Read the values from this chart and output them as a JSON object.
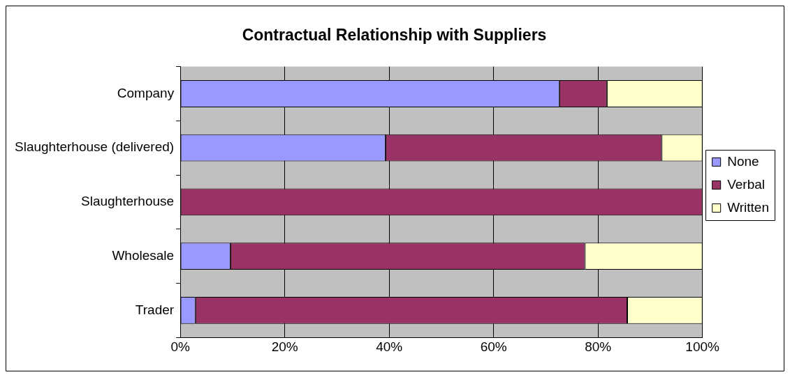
{
  "chart_data": {
    "type": "bar",
    "orientation": "horizontal",
    "stacked": true,
    "title": "Contractual Relationship with Suppliers",
    "categories": [
      "Company",
      "Slaughterhouse (delivered)",
      "Slaughterhouse",
      "Wholesale",
      "Trader"
    ],
    "series": [
      {
        "name": "None",
        "color": "#9999ff",
        "values": [
          72.6,
          39.3,
          0,
          9.6,
          2.9
        ]
      },
      {
        "name": "Verbal",
        "color": "#993366",
        "values": [
          9.1,
          52.9,
          100,
          67.9,
          82.7
        ]
      },
      {
        "name": "Written",
        "color": "#ffffcc",
        "values": [
          18.3,
          7.8,
          0,
          22.5,
          14.4
        ]
      }
    ],
    "xlim": [
      0,
      100
    ],
    "xticks": [
      {
        "value": 0,
        "label": "0%"
      },
      {
        "value": 20,
        "label": "20%"
      },
      {
        "value": 40,
        "label": "40%"
      },
      {
        "value": 60,
        "label": "60%"
      },
      {
        "value": 80,
        "label": "80%"
      },
      {
        "value": 100,
        "label": "100%"
      }
    ],
    "grid": "x",
    "legend": "right"
  }
}
